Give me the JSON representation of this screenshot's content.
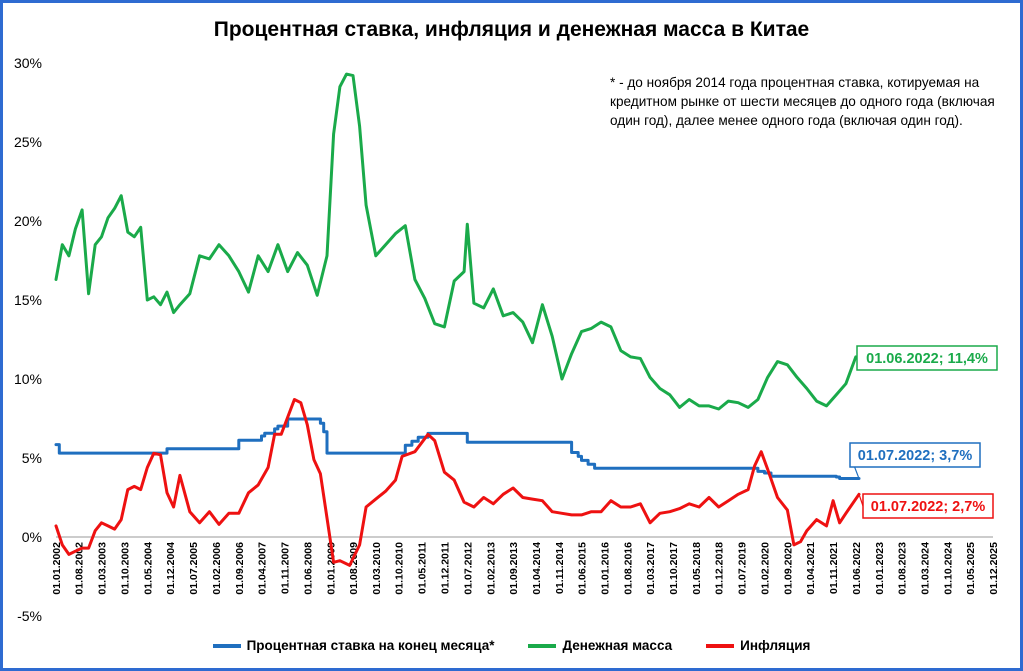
{
  "chart_data": {
    "type": "line",
    "title": "Процентная ставка, инфляция и денежная масса в Китае",
    "note": "* - до ноября 2014 года процентная ставка, котируемая на кредитном рынке от шести месяцев до одного года (включая один год), далее менее одного года (включая один год).",
    "ylim": [
      -5,
      30
    ],
    "yticks": [
      "-5%",
      "0%",
      "5%",
      "10%",
      "15%",
      "20%",
      "25%",
      "30%"
    ],
    "ytick_values": [
      -5,
      0,
      5,
      10,
      15,
      20,
      25,
      30
    ],
    "grid": false,
    "legend_position": "bottom",
    "x_start": "2002-01-01",
    "x_end": "2025-12-01",
    "xticks": [
      "01.01.2002",
      "01.08.2002",
      "01.03.2003",
      "01.10.2003",
      "01.05.2004",
      "01.12.2004",
      "01.07.2005",
      "01.02.2006",
      "01.09.2006",
      "01.04.2007",
      "01.11.2007",
      "01.06.2008",
      "01.01.2009",
      "01.08.2009",
      "01.03.2010",
      "01.10.2010",
      "01.05.2011",
      "01.12.2011",
      "01.07.2012",
      "01.02.2013",
      "01.09.2013",
      "01.04.2014",
      "01.11.2014",
      "01.06.2015",
      "01.01.2016",
      "01.08.2016",
      "01.03.2017",
      "01.10.2017",
      "01.05.2018",
      "01.12.2018",
      "01.07.2019",
      "01.02.2020",
      "01.09.2020",
      "01.04.2021",
      "01.11.2021",
      "01.06.2022",
      "01.01.2023",
      "01.08.2023",
      "01.03.2024",
      "01.10.2024",
      "01.05.2025",
      "01.12.2025"
    ],
    "series": [
      {
        "name": "Процентная ставка на конец месяца*",
        "color": "#1f6fbf",
        "x": [
          "2002-01-01",
          "2002-02-01",
          "2004-10-01",
          "2004-11-01",
          "2006-08-01",
          "2006-09-01",
          "2007-03-01",
          "2007-04-01",
          "2007-05-01",
          "2007-07-01",
          "2007-08-01",
          "2007-09-01",
          "2007-12-01",
          "2008-09-01",
          "2008-10-01",
          "2008-11-01",
          "2008-12-01",
          "2010-10-01",
          "2010-12-01",
          "2011-02-01",
          "2011-04-01",
          "2011-07-01",
          "2012-06-01",
          "2012-07-01",
          "2014-11-01",
          "2015-03-01",
          "2015-05-01",
          "2015-06-01",
          "2015-08-01",
          "2015-10-01",
          "2019-09-01",
          "2019-12-01",
          "2020-02-01",
          "2020-04-01",
          "2021-12-01",
          "2022-01-01",
          "2022-07-01"
        ],
        "values": [
          5.85,
          5.31,
          5.31,
          5.58,
          5.58,
          6.12,
          6.12,
          6.39,
          6.57,
          6.57,
          6.84,
          7.02,
          7.47,
          7.47,
          7.2,
          6.66,
          5.31,
          5.31,
          5.81,
          6.06,
          6.31,
          6.56,
          6.56,
          6.0,
          6.0,
          5.35,
          5.1,
          4.85,
          4.6,
          4.35,
          4.35,
          4.15,
          4.05,
          3.85,
          3.8,
          3.7,
          3.7
        ]
      },
      {
        "name": "Денежная масса",
        "color": "#1aaa4a",
        "x": [
          "2002-01-01",
          "2002-03-01",
          "2002-05-01",
          "2002-07-01",
          "2002-09-01",
          "2002-11-01",
          "2003-01-01",
          "2003-03-01",
          "2003-05-01",
          "2003-07-01",
          "2003-09-01",
          "2003-11-01",
          "2004-01-01",
          "2004-03-01",
          "2004-05-01",
          "2004-07-01",
          "2004-09-01",
          "2004-11-01",
          "2005-01-01",
          "2005-03-01",
          "2005-06-01",
          "2005-09-01",
          "2005-12-01",
          "2006-03-01",
          "2006-06-01",
          "2006-09-01",
          "2006-12-01",
          "2007-03-01",
          "2007-06-01",
          "2007-09-01",
          "2007-12-01",
          "2008-03-01",
          "2008-06-01",
          "2008-09-01",
          "2008-12-01",
          "2009-02-01",
          "2009-04-01",
          "2009-06-01",
          "2009-08-01",
          "2009-10-01",
          "2009-12-01",
          "2010-03-01",
          "2010-06-01",
          "2010-09-01",
          "2010-12-01",
          "2011-03-01",
          "2011-06-01",
          "2011-09-01",
          "2011-12-01",
          "2012-03-01",
          "2012-06-01",
          "2012-07-01",
          "2012-09-01",
          "2012-12-01",
          "2013-03-01",
          "2013-06-01",
          "2013-09-01",
          "2013-12-01",
          "2014-03-01",
          "2014-06-01",
          "2014-09-01",
          "2014-12-01",
          "2015-03-01",
          "2015-06-01",
          "2015-09-01",
          "2015-12-01",
          "2016-03-01",
          "2016-06-01",
          "2016-09-01",
          "2016-12-01",
          "2017-03-01",
          "2017-06-01",
          "2017-09-01",
          "2017-12-01",
          "2018-03-01",
          "2018-06-01",
          "2018-09-01",
          "2018-12-01",
          "2019-03-01",
          "2019-06-01",
          "2019-09-01",
          "2019-12-01",
          "2020-03-01",
          "2020-06-01",
          "2020-09-01",
          "2020-12-01",
          "2021-03-01",
          "2021-06-01",
          "2021-09-01",
          "2021-12-01",
          "2022-03-01",
          "2022-06-01"
        ],
        "values": [
          16.3,
          18.5,
          17.8,
          19.5,
          20.7,
          15.4,
          18.5,
          19.0,
          20.2,
          20.8,
          21.6,
          19.3,
          19.0,
          19.6,
          15.0,
          15.2,
          14.7,
          15.5,
          14.2,
          14.7,
          15.4,
          17.8,
          17.6,
          18.5,
          17.8,
          16.8,
          15.5,
          17.8,
          16.8,
          18.5,
          16.8,
          18.0,
          17.2,
          15.3,
          17.8,
          25.5,
          28.5,
          29.3,
          29.2,
          26.0,
          21.0,
          17.8,
          18.5,
          19.2,
          19.7,
          16.3,
          15.1,
          13.5,
          13.3,
          16.2,
          16.8,
          19.8,
          14.8,
          14.5,
          15.7,
          14.0,
          14.2,
          13.6,
          12.3,
          14.7,
          12.7,
          10.0,
          11.6,
          13.0,
          13.2,
          13.6,
          13.3,
          11.8,
          11.4,
          11.3,
          10.1,
          9.4,
          9.0,
          8.2,
          8.7,
          8.3,
          8.3,
          8.1,
          8.6,
          8.5,
          8.2,
          8.7,
          10.1,
          11.1,
          10.9,
          10.1,
          9.4,
          8.6,
          8.3,
          9.0,
          9.7,
          11.4
        ]
      },
      {
        "name": "Инфляция",
        "color": "#ee1111",
        "x": [
          "2002-01-01",
          "2002-03-01",
          "2002-05-01",
          "2002-07-01",
          "2002-09-01",
          "2002-11-01",
          "2003-01-01",
          "2003-03-01",
          "2003-05-01",
          "2003-07-01",
          "2003-09-01",
          "2003-11-01",
          "2004-01-01",
          "2004-03-01",
          "2004-05-01",
          "2004-07-01",
          "2004-09-01",
          "2004-11-01",
          "2005-01-01",
          "2005-03-01",
          "2005-06-01",
          "2005-09-01",
          "2005-12-01",
          "2006-03-01",
          "2006-06-01",
          "2006-09-01",
          "2006-12-01",
          "2007-03-01",
          "2007-06-01",
          "2007-08-01",
          "2007-10-01",
          "2008-02-01",
          "2008-04-01",
          "2008-06-01",
          "2008-08-01",
          "2008-10-01",
          "2008-12-01",
          "2009-02-01",
          "2009-04-01",
          "2009-07-01",
          "2009-10-01",
          "2009-12-01",
          "2010-03-01",
          "2010-06-01",
          "2010-09-01",
          "2010-11-01",
          "2011-03-01",
          "2011-07-01",
          "2011-09-01",
          "2011-12-01",
          "2012-03-01",
          "2012-06-01",
          "2012-09-01",
          "2012-12-01",
          "2013-03-01",
          "2013-06-01",
          "2013-09-01",
          "2013-12-01",
          "2014-03-01",
          "2014-06-01",
          "2014-09-01",
          "2014-12-01",
          "2015-03-01",
          "2015-06-01",
          "2015-09-01",
          "2015-12-01",
          "2016-03-01",
          "2016-06-01",
          "2016-09-01",
          "2016-12-01",
          "2017-03-01",
          "2017-06-01",
          "2017-09-01",
          "2017-12-01",
          "2018-03-01",
          "2018-06-01",
          "2018-09-01",
          "2018-12-01",
          "2019-03-01",
          "2019-06-01",
          "2019-09-01",
          "2019-11-01",
          "2020-01-01",
          "2020-03-01",
          "2020-06-01",
          "2020-09-01",
          "2020-11-01",
          "2021-01-01",
          "2021-03-01",
          "2021-06-01",
          "2021-09-01",
          "2021-11-01",
          "2022-01-01",
          "2022-03-01",
          "2022-07-01"
        ],
        "values": [
          0.7,
          -0.5,
          -1.1,
          -0.9,
          -0.7,
          -0.7,
          0.4,
          0.9,
          0.7,
          0.5,
          1.1,
          3.0,
          3.2,
          3.0,
          4.4,
          5.3,
          5.2,
          2.8,
          1.9,
          3.9,
          1.6,
          0.9,
          1.6,
          0.8,
          1.5,
          1.5,
          2.8,
          3.3,
          4.4,
          6.5,
          6.5,
          8.7,
          8.5,
          7.1,
          4.9,
          4.0,
          1.2,
          -1.6,
          -1.5,
          -1.8,
          -0.5,
          1.9,
          2.4,
          2.9,
          3.6,
          5.1,
          5.4,
          6.5,
          6.1,
          4.1,
          3.6,
          2.2,
          1.9,
          2.5,
          2.1,
          2.7,
          3.1,
          2.5,
          2.4,
          2.3,
          1.6,
          1.5,
          1.4,
          1.4,
          1.6,
          1.6,
          2.3,
          1.9,
          1.9,
          2.1,
          0.9,
          1.5,
          1.6,
          1.8,
          2.1,
          1.9,
          2.5,
          1.9,
          2.3,
          2.7,
          3.0,
          4.5,
          5.4,
          4.3,
          2.5,
          1.7,
          -0.5,
          -0.3,
          0.4,
          1.1,
          0.7,
          2.3,
          0.9,
          1.5,
          2.7
        ]
      }
    ],
    "callouts": [
      {
        "label": "01.06.2022; 11,4%",
        "series": 1,
        "color": "#1aaa4a"
      },
      {
        "label": "01.07.2022; 3,7%",
        "series": 0,
        "color": "#1f6fbf"
      },
      {
        "label": "01.07.2022; 2,7%",
        "series": 2,
        "color": "#ee1111"
      }
    ]
  }
}
